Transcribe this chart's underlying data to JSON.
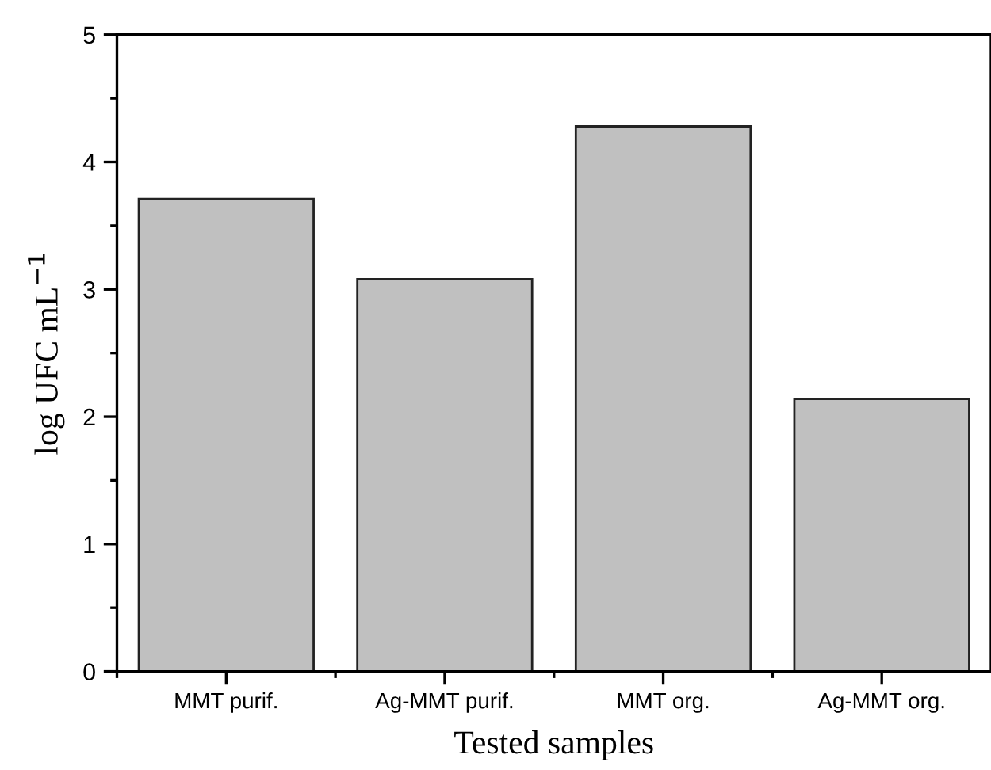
{
  "chart_data": {
    "type": "bar",
    "xlabel": "Tested samples",
    "ylabel": "log UFC mL$^{−1}$",
    "categories": [
      "MMT purif.",
      "Ag-MMT purif.",
      "MMT org.",
      "Ag-MMT org."
    ],
    "values": [
      3.71,
      3.08,
      4.28,
      2.14
    ],
    "color": "#c0c0c0",
    "ylim": [
      0,
      5
    ],
    "yticks": [
      0,
      1,
      2,
      3,
      4,
      5
    ],
    "grid": false,
    "legend": false
  }
}
